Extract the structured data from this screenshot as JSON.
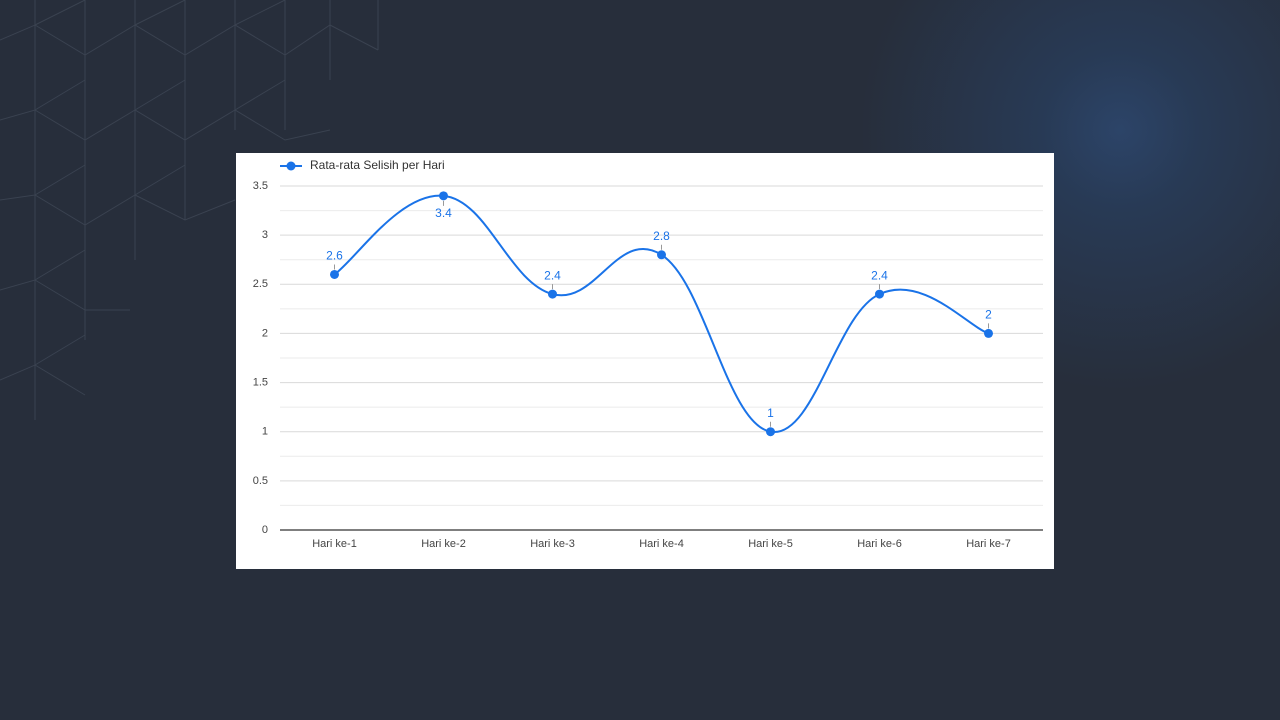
{
  "chart_data": {
    "type": "line",
    "categories": [
      "Hari ke-1",
      "Hari ke-2",
      "Hari ke-3",
      "Hari ke-4",
      "Hari ke-5",
      "Hari ke-6",
      "Hari ke-7"
    ],
    "series": [
      {
        "name": "Rata-rata Selisih per Hari",
        "color": "#1a73e8",
        "values": [
          2.6,
          3.4,
          2.4,
          2.8,
          1,
          2.4,
          2
        ]
      }
    ],
    "ylim": [
      0,
      3.5
    ],
    "yticks": [
      0,
      0.5,
      1,
      1.5,
      2,
      2.5,
      3,
      3.5
    ],
    "minor_yticks": [
      0.25,
      0.75,
      1.25,
      1.75,
      2.25,
      2.75,
      3.25
    ],
    "grid": true,
    "legend": "top-left",
    "smooth": true,
    "data_labels": true
  }
}
